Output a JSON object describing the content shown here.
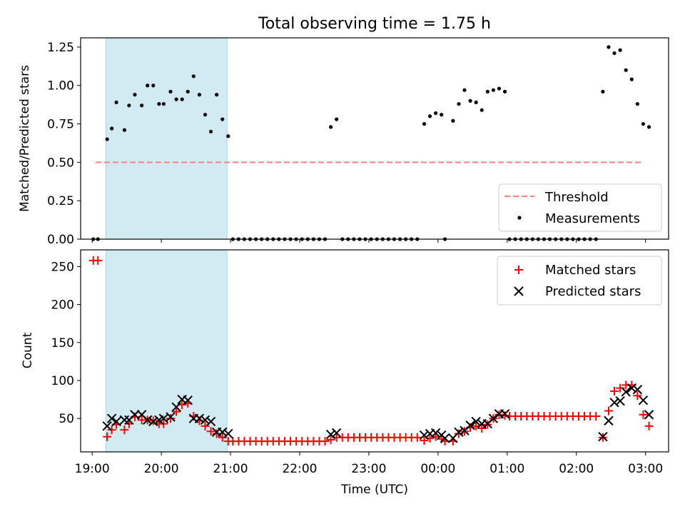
{
  "chart_data": [
    {
      "id": "ratio",
      "type": "scatter",
      "title": "Total observing time = 1.75 h",
      "ylabel": "Matched/Predicted stars",
      "xlabel": "",
      "xlim": [
        "18:50",
        "03:20"
      ],
      "ylim": [
        0,
        1.31
      ],
      "y_ticks": [
        "0.00",
        "0.25",
        "0.50",
        "0.75",
        "1.00",
        "1.25"
      ],
      "x_ticks": [
        "19:00",
        "20:00",
        "21:00",
        "22:00",
        "23:00",
        "00:00",
        "01:00",
        "02:00",
        "03:00"
      ],
      "shaded_span": [
        "19:12",
        "20:57"
      ],
      "threshold": {
        "name": "Threshold",
        "value": 0.5,
        "from": "19:03",
        "to": "02:58",
        "color": "#ff7f7f"
      },
      "legend": {
        "position": "lower-right",
        "entries": [
          "Threshold",
          "Measurements"
        ]
      },
      "series": [
        {
          "name": "Measurements",
          "color": "#000000",
          "points": [
            [
              "19:01",
              0
            ],
            [
              "19:05",
              0
            ],
            [
              "19:13",
              0.65
            ],
            [
              "19:17",
              0.72
            ],
            [
              "19:21",
              0.89
            ],
            [
              "19:28",
              0.71
            ],
            [
              "19:32",
              0.87
            ],
            [
              "19:37",
              0.94
            ],
            [
              "19:43",
              0.87
            ],
            [
              "19:48",
              1.0
            ],
            [
              "19:53",
              1.0
            ],
            [
              "19:58",
              0.88
            ],
            [
              "20:02",
              0.88
            ],
            [
              "20:08",
              0.96
            ],
            [
              "20:13",
              0.91
            ],
            [
              "20:18",
              0.91
            ],
            [
              "20:23",
              0.96
            ],
            [
              "20:28",
              1.06
            ],
            [
              "20:33",
              0.94
            ],
            [
              "20:38",
              0.81
            ],
            [
              "20:43",
              0.7
            ],
            [
              "20:48",
              0.94
            ],
            [
              "20:53",
              0.78
            ],
            [
              "20:58",
              0.67
            ],
            [
              "21:02",
              0
            ],
            [
              "21:07",
              0
            ],
            [
              "21:12",
              0
            ],
            [
              "21:17",
              0
            ],
            [
              "21:22",
              0
            ],
            [
              "21:27",
              0
            ],
            [
              "21:32",
              0
            ],
            [
              "21:37",
              0
            ],
            [
              "21:42",
              0
            ],
            [
              "21:47",
              0
            ],
            [
              "21:52",
              0
            ],
            [
              "21:57",
              0
            ],
            [
              "22:02",
              0
            ],
            [
              "22:07",
              0
            ],
            [
              "22:12",
              0
            ],
            [
              "22:17",
              0
            ],
            [
              "22:22",
              0
            ],
            [
              "22:27",
              0.73
            ],
            [
              "22:32",
              0.78
            ],
            [
              "22:37",
              0
            ],
            [
              "22:42",
              0
            ],
            [
              "22:47",
              0
            ],
            [
              "22:52",
              0
            ],
            [
              "22:57",
              0
            ],
            [
              "23:02",
              0
            ],
            [
              "23:07",
              0
            ],
            [
              "23:12",
              0
            ],
            [
              "23:17",
              0
            ],
            [
              "23:22",
              0
            ],
            [
              "23:27",
              0
            ],
            [
              "23:32",
              0
            ],
            [
              "23:37",
              0
            ],
            [
              "23:42",
              0
            ],
            [
              "23:48",
              0.75
            ],
            [
              "23:53",
              0.8
            ],
            [
              "23:58",
              0.82
            ],
            [
              "00:03",
              0.81
            ],
            [
              "00:06",
              0
            ],
            [
              "00:13",
              0.77
            ],
            [
              "00:18",
              0.88
            ],
            [
              "00:23",
              0.97
            ],
            [
              "00:28",
              0.9
            ],
            [
              "00:33",
              0.89
            ],
            [
              "00:38",
              0.84
            ],
            [
              "00:43",
              0.96
            ],
            [
              "00:48",
              0.97
            ],
            [
              "00:53",
              0.98
            ],
            [
              "00:58",
              0.96
            ],
            [
              "01:02",
              0
            ],
            [
              "01:07",
              0
            ],
            [
              "01:12",
              0
            ],
            [
              "01:17",
              0
            ],
            [
              "01:22",
              0
            ],
            [
              "01:27",
              0
            ],
            [
              "01:32",
              0
            ],
            [
              "01:37",
              0
            ],
            [
              "01:42",
              0
            ],
            [
              "01:47",
              0
            ],
            [
              "01:52",
              0
            ],
            [
              "01:57",
              0
            ],
            [
              "02:02",
              0
            ],
            [
              "02:07",
              0
            ],
            [
              "02:12",
              0
            ],
            [
              "02:17",
              0
            ],
            [
              "02:23",
              0.96
            ],
            [
              "02:28",
              1.25
            ],
            [
              "02:33",
              1.21
            ],
            [
              "02:38",
              1.23
            ],
            [
              "02:43",
              1.1
            ],
            [
              "02:48",
              1.04
            ],
            [
              "02:53",
              0.88
            ],
            [
              "02:58",
              0.75
            ],
            [
              "03:03",
              0.73
            ]
          ]
        }
      ]
    },
    {
      "id": "counts",
      "type": "scatter",
      "title": "",
      "ylabel": "Count",
      "xlabel": "Time (UTC)",
      "xlim": [
        "18:50",
        "03:20"
      ],
      "ylim": [
        6,
        272
      ],
      "y_ticks": [
        "50",
        "100",
        "150",
        "200",
        "250"
      ],
      "x_ticks": [
        "19:00",
        "20:00",
        "21:00",
        "22:00",
        "23:00",
        "00:00",
        "01:00",
        "02:00",
        "03:00"
      ],
      "shaded_span": [
        "19:12",
        "20:57"
      ],
      "legend": {
        "position": "upper-right",
        "entries": [
          "Matched stars",
          "Predicted stars"
        ]
      },
      "series": [
        {
          "name": "Matched stars",
          "marker": "plus",
          "color": "#ff0000",
          "points": [
            [
              "19:01",
              258
            ],
            [
              "19:05",
              258
            ],
            [
              "19:13",
              26
            ],
            [
              "19:17",
              35
            ],
            [
              "19:21",
              42
            ],
            [
              "19:28",
              35
            ],
            [
              "19:32",
              43
            ],
            [
              "19:37",
              52
            ],
            [
              "19:43",
              48
            ],
            [
              "19:48",
              48
            ],
            [
              "19:53",
              47
            ],
            [
              "19:58",
              43
            ],
            [
              "20:02",
              43
            ],
            [
              "20:08",
              50
            ],
            [
              "20:13",
              59
            ],
            [
              "20:18",
              68
            ],
            [
              "20:23",
              70
            ],
            [
              "20:28",
              53
            ],
            [
              "20:33",
              47
            ],
            [
              "20:38",
              40
            ],
            [
              "20:43",
              33
            ],
            [
              "20:48",
              30
            ],
            [
              "20:53",
              25
            ],
            [
              "20:58",
              20
            ],
            [
              "21:02",
              20
            ],
            [
              "21:07",
              20
            ],
            [
              "21:12",
              20
            ],
            [
              "21:17",
              20
            ],
            [
              "21:22",
              20
            ],
            [
              "21:27",
              20
            ],
            [
              "21:32",
              20
            ],
            [
              "21:37",
              20
            ],
            [
              "21:42",
              20
            ],
            [
              "21:47",
              20
            ],
            [
              "21:52",
              20
            ],
            [
              "21:57",
              20
            ],
            [
              "22:02",
              20
            ],
            [
              "22:07",
              20
            ],
            [
              "22:12",
              20
            ],
            [
              "22:17",
              20
            ],
            [
              "22:22",
              20
            ],
            [
              "22:27",
              22
            ],
            [
              "22:32",
              25
            ],
            [
              "22:37",
              25
            ],
            [
              "22:42",
              25
            ],
            [
              "22:47",
              25
            ],
            [
              "22:52",
              25
            ],
            [
              "22:57",
              25
            ],
            [
              "23:02",
              25
            ],
            [
              "23:07",
              25
            ],
            [
              "23:12",
              25
            ],
            [
              "23:17",
              25
            ],
            [
              "23:22",
              25
            ],
            [
              "23:27",
              25
            ],
            [
              "23:32",
              25
            ],
            [
              "23:37",
              25
            ],
            [
              "23:42",
              25
            ],
            [
              "23:48",
              21
            ],
            [
              "23:53",
              24
            ],
            [
              "23:58",
              26
            ],
            [
              "00:03",
              23
            ],
            [
              "00:06",
              20
            ],
            [
              "00:13",
              20
            ],
            [
              "00:18",
              30
            ],
            [
              "00:23",
              33
            ],
            [
              "00:28",
              38
            ],
            [
              "00:33",
              40
            ],
            [
              "00:38",
              37
            ],
            [
              "00:43",
              42
            ],
            [
              "00:48",
              50
            ],
            [
              "00:53",
              55
            ],
            [
              "00:58",
              54
            ],
            [
              "01:02",
              53
            ],
            [
              "01:07",
              53
            ],
            [
              "01:12",
              53
            ],
            [
              "01:17",
              53
            ],
            [
              "01:22",
              53
            ],
            [
              "01:27",
              53
            ],
            [
              "01:32",
              53
            ],
            [
              "01:37",
              53
            ],
            [
              "01:42",
              53
            ],
            [
              "01:47",
              53
            ],
            [
              "01:52",
              53
            ],
            [
              "01:57",
              53
            ],
            [
              "02:02",
              53
            ],
            [
              "02:07",
              53
            ],
            [
              "02:12",
              53
            ],
            [
              "02:17",
              53
            ],
            [
              "02:23",
              25
            ],
            [
              "02:28",
              60
            ],
            [
              "02:33",
              86
            ],
            [
              "02:38",
              90
            ],
            [
              "02:43",
              94
            ],
            [
              "02:48",
              94
            ],
            [
              "02:53",
              80
            ],
            [
              "02:58",
              55
            ],
            [
              "03:03",
              40
            ]
          ]
        },
        {
          "name": "Predicted stars",
          "marker": "x",
          "color": "#000000",
          "points": [
            [
              "19:13",
              40
            ],
            [
              "19:17",
              50
            ],
            [
              "19:21",
              46
            ],
            [
              "19:28",
              48
            ],
            [
              "19:32",
              48
            ],
            [
              "19:37",
              55
            ],
            [
              "19:43",
              55
            ],
            [
              "19:48",
              48
            ],
            [
              "19:53",
              46
            ],
            [
              "19:58",
              48
            ],
            [
              "20:02",
              50
            ],
            [
              "20:08",
              52
            ],
            [
              "20:13",
              65
            ],
            [
              "20:18",
              75
            ],
            [
              "20:23",
              74
            ],
            [
              "20:28",
              50
            ],
            [
              "20:33",
              50
            ],
            [
              "20:38",
              48
            ],
            [
              "20:43",
              46
            ],
            [
              "20:48",
              32
            ],
            [
              "20:53",
              32
            ],
            [
              "20:58",
              30
            ],
            [
              "22:27",
              29
            ],
            [
              "22:32",
              31
            ],
            [
              "23:48",
              28
            ],
            [
              "23:53",
              30
            ],
            [
              "23:58",
              31
            ],
            [
              "00:03",
              28
            ],
            [
              "00:06",
              24
            ],
            [
              "00:13",
              24
            ],
            [
              "00:18",
              32
            ],
            [
              "00:23",
              34
            ],
            [
              "00:28",
              41
            ],
            [
              "00:33",
              46
            ],
            [
              "00:38",
              43
            ],
            [
              "00:43",
              43
            ],
            [
              "00:48",
              50
            ],
            [
              "00:53",
              56
            ],
            [
              "00:58",
              56
            ],
            [
              "02:23",
              26
            ],
            [
              "02:28",
              47
            ],
            [
              "02:33",
              71
            ],
            [
              "02:38",
              73
            ],
            [
              "02:43",
              85
            ],
            [
              "02:48",
              90
            ],
            [
              "02:53",
              88
            ],
            [
              "02:58",
              74
            ],
            [
              "03:03",
              55
            ]
          ]
        }
      ]
    }
  ]
}
